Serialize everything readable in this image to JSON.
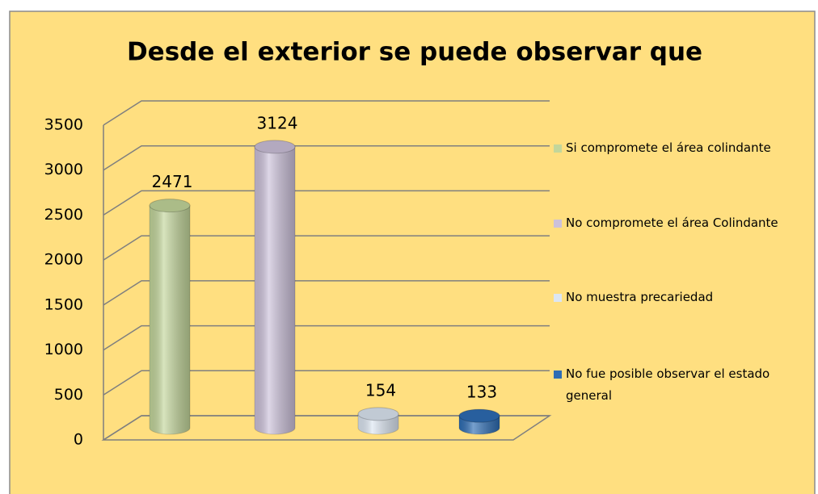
{
  "chart_data": {
    "type": "bar",
    "title": "Desde el exterior se puede observar que",
    "series": [
      {
        "name": "Si compromete el área colindante",
        "color": "#c3d69b",
        "values": [
          2471
        ]
      },
      {
        "name": "No compromete el área Colindante",
        "color": "#ccc1da",
        "values": [
          3124
        ]
      },
      {
        "name": "No muestra precariedad",
        "color": "#dce6f2",
        "values": [
          154
        ]
      },
      {
        "name": "No fue posible observar el estado general",
        "color": "#2e6db4",
        "values": [
          133
        ]
      }
    ],
    "ylim": [
      0,
      3500
    ],
    "yticks": [
      0,
      500,
      1000,
      1500,
      2000,
      2500,
      3000,
      3500
    ],
    "grid": true
  }
}
